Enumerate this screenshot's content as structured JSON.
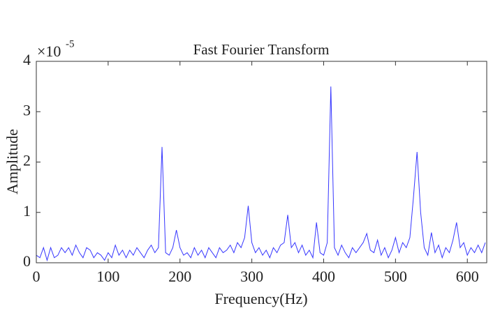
{
  "chart_data": {
    "type": "line",
    "title": "Fast Fourier Transform",
    "x_label": "Frequency(Hz)",
    "y_label": "Amplitude",
    "y_multiplier": {
      "base": "×10",
      "exponent": "-5"
    },
    "color": "#3636ff",
    "x": [
      0,
      5,
      10,
      15,
      20,
      25,
      30,
      35,
      40,
      45,
      50,
      55,
      60,
      65,
      70,
      75,
      80,
      85,
      90,
      95,
      100,
      105,
      110,
      115,
      120,
      125,
      130,
      135,
      140,
      145,
      150,
      155,
      160,
      165,
      170,
      175,
      180,
      185,
      190,
      195,
      200,
      205,
      210,
      215,
      220,
      225,
      230,
      235,
      240,
      245,
      250,
      255,
      260,
      265,
      270,
      275,
      280,
      285,
      290,
      295,
      300,
      305,
      310,
      315,
      320,
      325,
      330,
      335,
      340,
      345,
      350,
      355,
      360,
      365,
      370,
      375,
      380,
      385,
      390,
      395,
      400,
      405,
      410,
      415,
      420,
      425,
      430,
      435,
      440,
      445,
      450,
      455,
      460,
      465,
      470,
      475,
      480,
      485,
      490,
      495,
      500,
      505,
      510,
      515,
      520,
      525,
      530,
      535,
      540,
      545,
      550,
      555,
      560,
      565,
      570,
      575,
      580,
      585,
      590,
      595,
      600,
      605,
      610,
      615,
      620,
      625
    ],
    "values": [
      0.15,
      0.1,
      0.3,
      0.05,
      0.3,
      0.1,
      0.15,
      0.3,
      0.2,
      0.3,
      0.15,
      0.35,
      0.2,
      0.1,
      0.3,
      0.25,
      0.1,
      0.2,
      0.15,
      0.05,
      0.2,
      0.1,
      0.35,
      0.15,
      0.25,
      0.1,
      0.25,
      0.15,
      0.3,
      0.2,
      0.1,
      0.25,
      0.35,
      0.2,
      0.3,
      2.3,
      0.2,
      0.15,
      0.3,
      0.65,
      0.3,
      0.15,
      0.2,
      0.1,
      0.3,
      0.15,
      0.25,
      0.1,
      0.3,
      0.2,
      0.1,
      0.3,
      0.2,
      0.25,
      0.35,
      0.2,
      0.4,
      0.3,
      0.5,
      1.13,
      0.4,
      0.2,
      0.3,
      0.15,
      0.25,
      0.1,
      0.3,
      0.2,
      0.35,
      0.4,
      0.95,
      0.3,
      0.4,
      0.2,
      0.35,
      0.15,
      0.25,
      0.1,
      0.8,
      0.2,
      0.15,
      0.4,
      3.5,
      0.3,
      0.15,
      0.35,
      0.2,
      0.1,
      0.3,
      0.2,
      0.3,
      0.4,
      0.58,
      0.25,
      0.2,
      0.45,
      0.15,
      0.3,
      0.1,
      0.25,
      0.5,
      0.2,
      0.4,
      0.3,
      0.5,
      1.3,
      2.2,
      1.0,
      0.3,
      0.15,
      0.6,
      0.2,
      0.35,
      0.1,
      0.3,
      0.2,
      0.45,
      0.8,
      0.3,
      0.4,
      0.15,
      0.3,
      0.2,
      0.35,
      0.2,
      0.4
    ],
    "xlim": [
      0,
      627
    ],
    "xticks": [
      0,
      100,
      200,
      300,
      400,
      500,
      600
    ],
    "ylim": [
      0,
      4
    ],
    "yticks": [
      0,
      1,
      2,
      3,
      4
    ]
  }
}
